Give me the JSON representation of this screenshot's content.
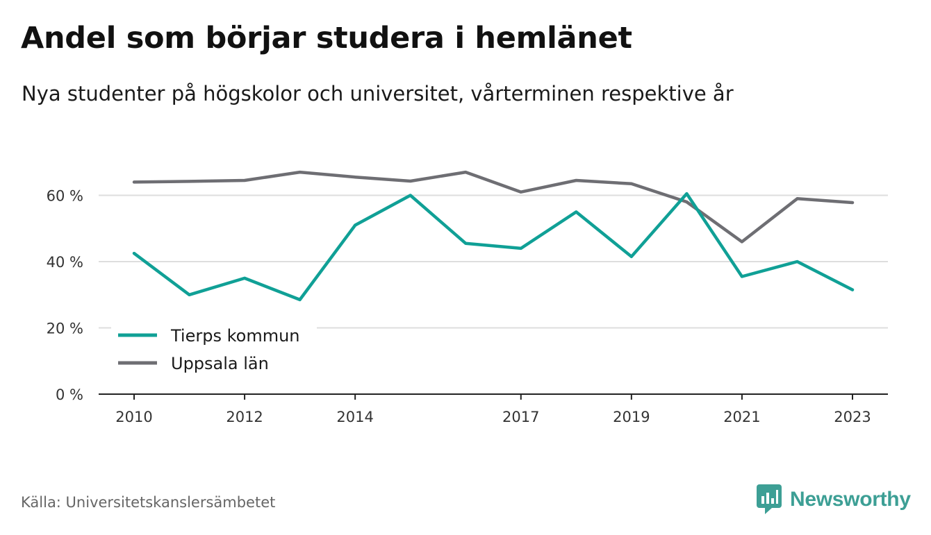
{
  "title": "Andel som börjar studera i hemlänet",
  "subtitle": "Nya studenter på högskolor och universitet, vårterminen respektive år",
  "source": "Källa: Universitetskanslersämbetet",
  "brand": {
    "name": "Newsworthy",
    "icon": "newsworthy-logo-icon",
    "color": "#3d9f95"
  },
  "chart_data": {
    "type": "line",
    "x": [
      2010,
      2011,
      2012,
      2013,
      2014,
      2015,
      2016,
      2017,
      2018,
      2019,
      2020,
      2021,
      2022,
      2023
    ],
    "x_tick_labels": [
      "2010",
      "2012",
      "2014",
      "2017",
      "2019",
      "2021",
      "2023"
    ],
    "x_tick_values": [
      2010,
      2012,
      2014,
      2017,
      2019,
      2021,
      2023
    ],
    "y_tick_labels": [
      "0 %",
      "20 %",
      "40 %",
      "60 %"
    ],
    "y_tick_values": [
      0,
      20,
      40,
      60
    ],
    "ylim": [
      0,
      75
    ],
    "grid": true,
    "legend_position": "bottom-left",
    "series": [
      {
        "name": "Tierps kommun",
        "color": "#10a096",
        "values": [
          42.5,
          30,
          35,
          28.5,
          51,
          60,
          45.5,
          44,
          55,
          41.5,
          60.5,
          35.5,
          40,
          31.5
        ]
      },
      {
        "name": "Uppsala län",
        "color": "#6e6e73",
        "values": [
          64,
          64.2,
          64.5,
          67,
          65.5,
          64.3,
          67,
          61,
          64.5,
          63.5,
          58,
          46,
          59,
          57.8
        ]
      }
    ]
  }
}
